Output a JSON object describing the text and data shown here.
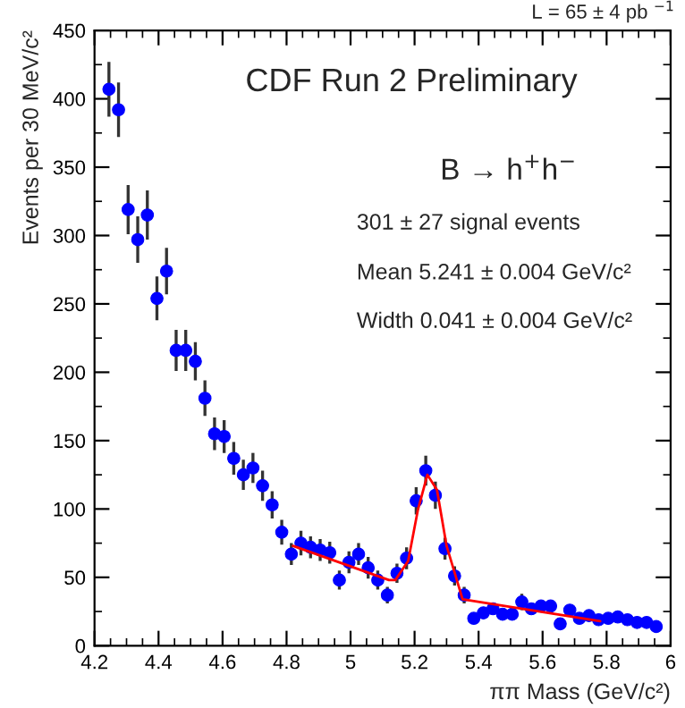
{
  "chart_data": {
    "type": "scatter",
    "title": "CDF Run 2 Preliminary",
    "xlabel": "ππ Mass (GeV/c²)",
    "ylabel": "Events per 30 MeV/c²",
    "annotations": [
      "L = 65 ± 4 pb $^{−1}$",
      "B → h$^{+}$h$^{−}$",
      "301 ± 27 signal events",
      "Mean 5.241 ± 0.004 GeV/c²",
      "Width 0.041 ± 0.004 GeV/c²"
    ],
    "xlim": [
      4.2,
      6
    ],
    "ylim": [
      0,
      450
    ],
    "xticks": [
      4.2,
      {
        "value": 4.25,
        "label": null
      },
      {
        "value": 4.3,
        "label": null
      },
      {
        "value": 4.35,
        "label": null
      },
      4.4,
      {
        "value": 4.45,
        "label": null
      },
      {
        "value": 4.5,
        "label": null
      },
      {
        "value": 4.55,
        "label": null
      },
      4.6,
      {
        "value": 4.65,
        "label": null
      },
      {
        "value": 4.7,
        "label": null
      },
      {
        "value": 4.75,
        "label": null
      },
      4.8,
      {
        "value": 4.85,
        "label": null
      },
      {
        "value": 4.9,
        "label": null
      },
      {
        "value": 4.95,
        "label": null
      },
      5,
      {
        "value": 5.05,
        "label": null
      },
      {
        "value": 5.1,
        "label": null
      },
      {
        "value": 5.15,
        "label": null
      },
      5.2,
      {
        "value": 5.25,
        "label": null
      },
      {
        "value": 5.3,
        "label": null
      },
      {
        "value": 5.35,
        "label": null
      },
      5.4,
      {
        "value": 5.45,
        "label": null
      },
      {
        "value": 5.5,
        "label": null
      },
      {
        "value": 5.55,
        "label": null
      },
      5.6,
      {
        "value": 5.65,
        "label": null
      },
      {
        "value": 5.7,
        "label": null
      },
      {
        "value": 5.75,
        "label": null
      },
      5.8,
      {
        "value": 5.85,
        "label": null
      },
      {
        "value": 5.9,
        "label": null
      },
      {
        "value": 5.95,
        "label": null
      },
      6
    ],
    "yticks": [
      0,
      {
        "value": 25,
        "label": null
      },
      50,
      {
        "value": 75,
        "label": null
      },
      100,
      {
        "value": 125,
        "label": null
      },
      150,
      {
        "value": 175,
        "label": null
      },
      200,
      {
        "value": 225,
        "label": null
      },
      250,
      {
        "value": 275,
        "label": null
      },
      300,
      {
        "value": 325,
        "label": null
      },
      350,
      {
        "value": 375,
        "label": null
      },
      400,
      {
        "value": 425,
        "label": null
      },
      450
    ],
    "grid": false,
    "marker": "circle",
    "series": [
      {
        "color": "#0000ff",
        "x": [
          4.245,
          4.275,
          4.305,
          4.335,
          4.365,
          4.395,
          4.425,
          4.455,
          4.485,
          4.515,
          4.545,
          4.575,
          4.605,
          4.635,
          4.665,
          4.695,
          4.725,
          4.755,
          4.785,
          4.815,
          4.845,
          4.875,
          4.905,
          4.935,
          4.965,
          4.995,
          5.025,
          5.055,
          5.085,
          5.115,
          5.145,
          5.175,
          5.205,
          5.235,
          5.265,
          5.295,
          5.325,
          5.355,
          5.385,
          5.415,
          5.445,
          5.475,
          5.505,
          5.535,
          5.565,
          5.595,
          5.625,
          5.655,
          5.685,
          5.715,
          5.745,
          5.775,
          5.805,
          5.835,
          5.865,
          5.895,
          5.925,
          5.955
        ],
        "values": [
          407,
          392,
          319,
          297,
          315,
          254,
          274,
          216,
          216,
          208,
          181,
          155,
          153,
          137,
          125,
          130,
          117,
          103,
          83,
          67,
          75,
          72,
          70,
          68,
          48,
          61,
          67,
          57,
          48,
          37,
          53,
          64,
          106,
          128,
          110,
          71,
          51,
          37,
          20,
          24,
          27,
          23,
          23,
          32,
          27,
          29,
          29,
          16,
          26,
          20,
          22,
          19,
          20,
          21,
          19,
          17,
          17,
          14
        ],
        "errors": [
          20,
          20,
          18,
          17,
          18,
          16,
          17,
          15,
          15,
          14,
          13,
          12,
          12,
          12,
          11,
          11,
          11,
          10,
          9,
          8,
          9,
          8,
          8,
          8,
          7,
          8,
          8,
          8,
          7,
          6,
          7,
          8,
          10,
          11,
          10,
          8,
          7,
          6,
          null,
          null,
          null,
          null,
          null,
          6,
          null,
          null,
          null,
          null,
          null,
          null,
          null,
          null,
          null,
          null,
          null,
          null,
          null,
          null
        ]
      },
      {
        "type": "line",
        "color": "#ff0000",
        "line_style": "solid",
        "marker": "none",
        "x": [
          4.82,
          5.12,
          5.14,
          5.18,
          5.21,
          5.24,
          5.27,
          5.3,
          5.35,
          5.78
        ],
        "values": [
          73,
          48,
          48,
          62,
          99,
          125,
          114,
          73,
          34,
          18
        ]
      }
    ]
  }
}
